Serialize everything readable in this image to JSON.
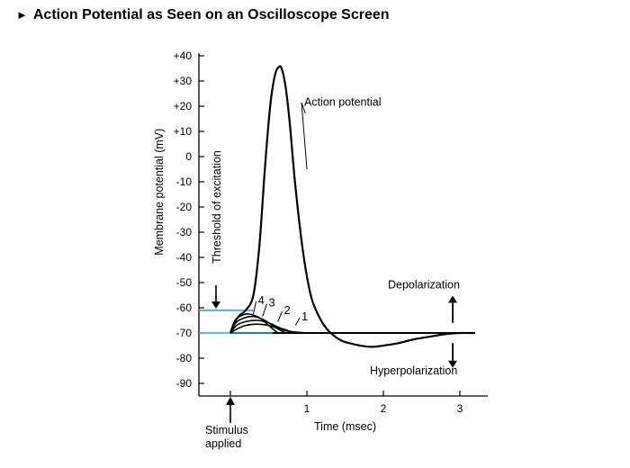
{
  "page_title": "Action Potential as Seen on an Oscilloscope Screen",
  "colors": {
    "ink": "#000000",
    "threshold": "#29a8e0",
    "background": "#ffffff"
  },
  "chart_data": {
    "type": "line",
    "title": "Action Potential as Seen on an Oscilloscope Screen",
    "ylabel": "Membrane potential (mV)",
    "xlabel": "Time (msec)",
    "ylim": [
      -95,
      40
    ],
    "xlim": [
      -0.4,
      3.2
    ],
    "y_ticks": [
      40,
      30,
      20,
      10,
      0,
      -10,
      -20,
      -30,
      -40,
      -50,
      -60,
      -70,
      -80,
      -90
    ],
    "y_tick_labels": [
      "+40",
      "+30",
      "+20",
      "+10",
      "0",
      "-10",
      "-20",
      "-30",
      "-40",
      "-50",
      "-60",
      "-70",
      "-80",
      "-90"
    ],
    "x_ticks": [
      1,
      2,
      3
    ],
    "x_tick_labels": [
      "1",
      "2",
      "3"
    ],
    "grid": false,
    "resting_potential": -70,
    "threshold_of_excitation": -61,
    "labels": {
      "action_potential": "Action potential",
      "threshold": "Threshold of excitation",
      "stimulus": [
        "Stimulus",
        "applied"
      ],
      "depolarization": "Depolarization",
      "hyperpolarization": "Hyperpolarization"
    },
    "series": [
      {
        "name": "Action potential",
        "x": [
          0,
          0.05,
          0.12,
          0.2,
          0.3,
          0.38,
          0.45,
          0.52,
          0.58,
          0.63,
          0.67,
          0.72,
          0.78,
          0.85,
          0.95,
          1.05,
          1.15,
          1.25,
          1.35,
          1.45,
          1.55,
          1.7,
          1.85,
          2.0,
          2.2,
          2.4,
          2.6,
          2.8,
          3.0,
          3.2
        ],
        "y": [
          -70,
          -66,
          -63,
          -61,
          -55,
          -35,
          -5,
          20,
          32,
          35.5,
          35,
          28,
          12,
          -12,
          -38,
          -55,
          -63,
          -68,
          -71,
          -73,
          -74,
          -75,
          -75.5,
          -75,
          -74,
          -72.5,
          -71.5,
          -70.5,
          -70,
          -70
        ]
      },
      {
        "name": "1",
        "x": [
          0,
          0.08,
          0.2,
          0.35,
          0.5,
          0.65,
          0.8,
          1.0
        ],
        "y": [
          -70,
          -68.5,
          -67,
          -66.5,
          -67,
          -68.5,
          -69.5,
          -70
        ]
      },
      {
        "name": "2",
        "x": [
          0,
          0.08,
          0.2,
          0.35,
          0.5,
          0.65,
          0.85
        ],
        "y": [
          -70,
          -67,
          -65.5,
          -65,
          -66,
          -68,
          -70
        ]
      },
      {
        "name": "3",
        "x": [
          0,
          0.07,
          0.18,
          0.32,
          0.45,
          0.6,
          0.72
        ],
        "y": [
          -70,
          -66,
          -64,
          -63.5,
          -65,
          -68,
          -70
        ]
      },
      {
        "name": "4",
        "x": [
          0,
          0.06,
          0.15,
          0.25,
          0.38,
          0.5,
          0.62
        ],
        "y": [
          -70,
          -65,
          -63,
          -62.5,
          -64,
          -67,
          -70
        ]
      }
    ]
  }
}
